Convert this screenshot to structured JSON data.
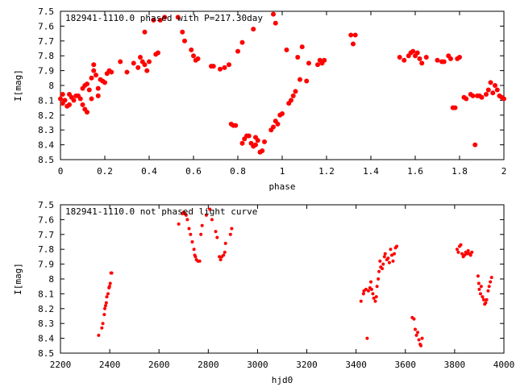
{
  "chart_data": [
    {
      "type": "scatter",
      "title": "182941-1110.0 phased with P=217.30day",
      "xlabel": "phase",
      "ylabel": "I[mag]",
      "xlim": [
        0,
        2
      ],
      "ylim": [
        8.5,
        7.5
      ],
      "y_inverted": true,
      "grid": false,
      "x_ticks": [
        "0",
        "0.2",
        "0.4",
        "0.6",
        "0.8",
        "1",
        "1.2",
        "1.4",
        "1.6",
        "1.8",
        "2"
      ],
      "y_ticks": [
        "7.5",
        "7.6",
        "7.7",
        "7.8",
        "7.9",
        "8",
        "8.1",
        "8.2",
        "8.3",
        "8.4",
        "8.5"
      ],
      "series": [
        {
          "color": "#ff0000",
          "marker": "filled-circle",
          "points": [
            [
              0.0,
              8.09
            ],
            [
              0.01,
              8.06
            ],
            [
              0.01,
              8.12
            ],
            [
              0.02,
              8.1
            ],
            [
              0.03,
              8.14
            ],
            [
              0.04,
              8.06
            ],
            [
              0.04,
              8.13
            ],
            [
              0.05,
              8.08
            ],
            [
              0.06,
              8.1
            ],
            [
              0.07,
              8.07
            ],
            [
              0.08,
              8.07
            ],
            [
              0.09,
              8.09
            ],
            [
              0.1,
              8.02
            ],
            [
              0.1,
              8.13
            ],
            [
              0.11,
              8.16
            ],
            [
              0.11,
              8.0
            ],
            [
              0.12,
              8.18
            ],
            [
              0.12,
              7.99
            ],
            [
              0.13,
              8.03
            ],
            [
              0.14,
              7.95
            ],
            [
              0.14,
              8.09
            ],
            [
              0.15,
              7.9
            ],
            [
              0.15,
              7.86
            ],
            [
              0.16,
              7.93
            ],
            [
              0.17,
              8.02
            ],
            [
              0.17,
              8.07
            ],
            [
              0.18,
              7.96
            ],
            [
              0.19,
              7.97
            ],
            [
              0.2,
              7.98
            ],
            [
              0.21,
              7.92
            ],
            [
              0.22,
              7.9
            ],
            [
              0.23,
              7.91
            ],
            [
              0.27,
              7.84
            ],
            [
              0.3,
              7.91
            ],
            [
              0.33,
              7.85
            ],
            [
              0.35,
              7.88
            ],
            [
              0.36,
              7.81
            ],
            [
              0.37,
              7.84
            ],
            [
              0.38,
              7.86
            ],
            [
              0.38,
              7.64
            ],
            [
              0.39,
              7.9
            ],
            [
              0.4,
              7.84
            ],
            [
              0.42,
              7.56
            ],
            [
              0.43,
              7.79
            ],
            [
              0.44,
              7.78
            ],
            [
              0.45,
              7.56
            ],
            [
              0.47,
              7.54
            ],
            [
              0.53,
              7.54
            ],
            [
              0.55,
              7.64
            ],
            [
              0.56,
              7.7
            ],
            [
              0.59,
              7.76
            ],
            [
              0.6,
              7.8
            ],
            [
              0.61,
              7.83
            ],
            [
              0.62,
              7.82
            ],
            [
              0.68,
              7.87
            ],
            [
              0.69,
              7.87
            ],
            [
              0.72,
              7.89
            ],
            [
              0.74,
              7.88
            ],
            [
              0.76,
              7.86
            ],
            [
              0.77,
              8.26
            ],
            [
              0.78,
              8.27
            ],
            [
              0.79,
              8.27
            ],
            [
              0.8,
              7.77
            ],
            [
              0.82,
              7.71
            ],
            [
              0.82,
              8.39
            ],
            [
              0.83,
              8.36
            ],
            [
              0.84,
              8.34
            ],
            [
              0.85,
              8.34
            ],
            [
              0.86,
              8.39
            ],
            [
              0.87,
              8.41
            ],
            [
              0.87,
              7.62
            ],
            [
              0.88,
              8.4
            ],
            [
              0.88,
              8.35
            ],
            [
              0.89,
              8.37
            ],
            [
              0.9,
              8.45
            ],
            [
              0.91,
              8.44
            ],
            [
              0.92,
              8.38
            ],
            [
              0.95,
              8.3
            ],
            [
              0.96,
              7.52
            ],
            [
              0.96,
              8.28
            ],
            [
              0.97,
              8.24
            ],
            [
              0.97,
              7.58
            ],
            [
              0.98,
              8.26
            ],
            [
              0.99,
              8.2
            ],
            [
              1.0,
              8.19
            ],
            [
              1.02,
              7.76
            ],
            [
              1.03,
              8.12
            ],
            [
              1.04,
              8.1
            ],
            [
              1.05,
              8.07
            ],
            [
              1.06,
              8.04
            ],
            [
              1.07,
              7.81
            ],
            [
              1.08,
              7.96
            ],
            [
              1.09,
              7.74
            ],
            [
              1.11,
              7.97
            ],
            [
              1.12,
              7.85
            ],
            [
              1.16,
              7.86
            ],
            [
              1.17,
              7.83
            ],
            [
              1.18,
              7.85
            ],
            [
              1.19,
              7.83
            ],
            [
              1.31,
              7.66
            ],
            [
              1.32,
              7.72
            ],
            [
              1.33,
              7.66
            ],
            [
              1.53,
              7.81
            ],
            [
              1.55,
              7.83
            ],
            [
              1.57,
              7.8
            ],
            [
              1.58,
              7.78
            ],
            [
              1.59,
              7.77
            ],
            [
              1.6,
              7.8
            ],
            [
              1.61,
              7.78
            ],
            [
              1.62,
              7.82
            ],
            [
              1.63,
              7.85
            ],
            [
              1.65,
              7.81
            ],
            [
              1.7,
              7.83
            ],
            [
              1.72,
              7.84
            ],
            [
              1.73,
              7.84
            ],
            [
              1.75,
              7.8
            ],
            [
              1.76,
              7.82
            ],
            [
              1.77,
              8.15
            ],
            [
              1.78,
              8.15
            ],
            [
              1.79,
              7.82
            ],
            [
              1.8,
              7.81
            ],
            [
              1.82,
              8.08
            ],
            [
              1.83,
              8.09
            ],
            [
              1.85,
              8.06
            ],
            [
              1.86,
              8.07
            ],
            [
              1.87,
              8.4
            ],
            [
              1.88,
              8.07
            ],
            [
              1.89,
              8.07
            ],
            [
              1.9,
              8.08
            ],
            [
              1.92,
              8.06
            ],
            [
              1.93,
              8.03
            ],
            [
              1.94,
              7.98
            ],
            [
              1.95,
              8.05
            ],
            [
              1.96,
              8.0
            ],
            [
              1.97,
              8.03
            ],
            [
              1.98,
              8.07
            ],
            [
              1.99,
              8.08
            ],
            [
              2.0,
              8.09
            ]
          ]
        }
      ]
    },
    {
      "type": "scatter",
      "title": "182941-1110.0 not phased light curve",
      "xlabel": "hjd0",
      "ylabel": "I[mag]",
      "xlim": [
        2200,
        4000
      ],
      "ylim": [
        8.5,
        7.5
      ],
      "y_inverted": true,
      "grid": false,
      "x_ticks": [
        "2200",
        "2400",
        "2600",
        "2800",
        "3000",
        "3200",
        "3400",
        "3600",
        "3800",
        "4000"
      ],
      "y_ticks": [
        "7.5",
        "7.6",
        "7.7",
        "7.8",
        "7.9",
        "8",
        "8.1",
        "8.2",
        "8.3",
        "8.4",
        "8.5"
      ],
      "series": [
        {
          "color": "#ff0000",
          "marker": "filled-circle",
          "points": [
            [
              2355,
              8.38
            ],
            [
              2368,
              8.33
            ],
            [
              2372,
              8.3
            ],
            [
              2378,
              8.24
            ],
            [
              2380,
              8.2
            ],
            [
              2383,
              8.18
            ],
            [
              2386,
              8.16
            ],
            [
              2388,
              8.12
            ],
            [
              2393,
              8.1
            ],
            [
              2397,
              8.06
            ],
            [
              2399,
              8.05
            ],
            [
              2402,
              8.03
            ],
            [
              2405,
              7.96
            ],
            [
              2408,
              7.96
            ],
            [
              2680,
              7.63
            ],
            [
              2695,
              7.56
            ],
            [
              2700,
              7.55
            ],
            [
              2705,
              7.56
            ],
            [
              2710,
              7.57
            ],
            [
              2715,
              7.6
            ],
            [
              2722,
              7.66
            ],
            [
              2728,
              7.7
            ],
            [
              2735,
              7.75
            ],
            [
              2742,
              7.8
            ],
            [
              2745,
              7.84
            ],
            [
              2748,
              7.85
            ],
            [
              2752,
              7.87
            ],
            [
              2758,
              7.88
            ],
            [
              2765,
              7.88
            ],
            [
              2770,
              7.7
            ],
            [
              2775,
              7.64
            ],
            [
              2792,
              7.57
            ],
            [
              2806,
              7.53
            ],
            [
              2815,
              7.6
            ],
            [
              2830,
              7.68
            ],
            [
              2836,
              7.72
            ],
            [
              2845,
              7.85
            ],
            [
              2850,
              7.87
            ],
            [
              2855,
              7.85
            ],
            [
              2862,
              7.84
            ],
            [
              2867,
              7.82
            ],
            [
              2870,
              7.76
            ],
            [
              2890,
              7.7
            ],
            [
              2895,
              7.66
            ],
            [
              3420,
              8.15
            ],
            [
              3430,
              8.1
            ],
            [
              3432,
              8.08
            ],
            [
              3440,
              8.07
            ],
            [
              3445,
              8.4
            ],
            [
              3450,
              8.08
            ],
            [
              3456,
              8.06
            ],
            [
              3460,
              8.02
            ],
            [
              3463,
              8.07
            ],
            [
              3468,
              8.1
            ],
            [
              3472,
              8.13
            ],
            [
              3478,
              8.15
            ],
            [
              3482,
              8.12
            ],
            [
              3485,
              8.05
            ],
            [
              3490,
              8.0
            ],
            [
              3493,
              7.95
            ],
            [
              3497,
              7.88
            ],
            [
              3500,
              7.92
            ],
            [
              3506,
              7.93
            ],
            [
              3510,
              7.9
            ],
            [
              3515,
              7.85
            ],
            [
              3518,
              7.83
            ],
            [
              3525,
              7.87
            ],
            [
              3530,
              7.86
            ],
            [
              3535,
              7.89
            ],
            [
              3540,
              7.8
            ],
            [
              3545,
              7.84
            ],
            [
              3550,
              7.88
            ],
            [
              3555,
              7.83
            ],
            [
              3560,
              7.79
            ],
            [
              3565,
              7.78
            ],
            [
              3628,
              8.26
            ],
            [
              3635,
              8.27
            ],
            [
              3640,
              8.34
            ],
            [
              3645,
              8.38
            ],
            [
              3650,
              8.36
            ],
            [
              3655,
              8.41
            ],
            [
              3660,
              8.44
            ],
            [
              3663,
              8.45
            ],
            [
              3668,
              8.4
            ],
            [
              3810,
              7.8
            ],
            [
              3815,
              7.82
            ],
            [
              3820,
              7.78
            ],
            [
              3825,
              7.77
            ],
            [
              3830,
              7.83
            ],
            [
              3835,
              7.85
            ],
            [
              3840,
              7.84
            ],
            [
              3845,
              7.82
            ],
            [
              3850,
              7.83
            ],
            [
              3855,
              7.81
            ],
            [
              3860,
              7.83
            ],
            [
              3865,
              7.84
            ],
            [
              3870,
              7.82
            ],
            [
              3895,
              7.98
            ],
            [
              3898,
              8.03
            ],
            [
              3900,
              8.07
            ],
            [
              3905,
              8.1
            ],
            [
              3908,
              8.05
            ],
            [
              3913,
              8.12
            ],
            [
              3918,
              8.14
            ],
            [
              3922,
              8.17
            ],
            [
              3926,
              8.16
            ],
            [
              3930,
              8.14
            ],
            [
              3936,
              8.08
            ],
            [
              3940,
              8.05
            ],
            [
              3945,
              8.02
            ],
            [
              3950,
              7.99
            ]
          ]
        }
      ]
    }
  ]
}
